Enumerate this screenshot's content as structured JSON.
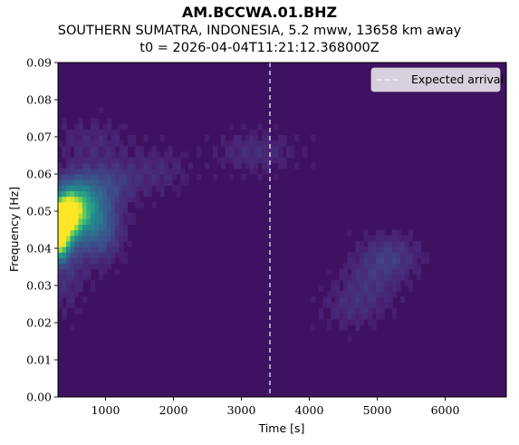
{
  "header": {
    "station": "AM.BCCWA.01.BHZ",
    "event": "SOUTHERN SUMATRA, INDONESIA, 5.2 mww, 13658 km away",
    "t0": "t0 = 2026-04-04T11:21:12.368000Z"
  },
  "chart_data": {
    "type": "heatmap",
    "title": "AM.BCCWA.01.BHZ",
    "xlabel": "Time [s]",
    "ylabel": "Frequency [Hz]",
    "xlim": [
      300,
      6900
    ],
    "ylim": [
      0.0,
      0.09
    ],
    "x_ticks": [
      1000,
      2000,
      3000,
      4000,
      5000,
      6000
    ],
    "x_tick_labels": [
      "1000",
      "2000",
      "3000",
      "4000",
      "5000",
      "6000"
    ],
    "y_ticks": [
      0.0,
      0.01,
      0.02,
      0.03,
      0.04,
      0.05,
      0.06,
      0.07,
      0.08,
      0.09
    ],
    "y_tick_labels": [
      "0.00",
      "0.01",
      "0.02",
      "0.03",
      "0.04",
      "0.05",
      "0.06",
      "0.07",
      "0.08",
      "0.09"
    ],
    "colormap": "viridis",
    "background_color": "#3f1261",
    "expected_arrival_s": 3420,
    "legend": {
      "label": "Expected arrival",
      "placement": "top-right"
    },
    "hotspots": [
      {
        "x": 380,
        "y": 0.048,
        "sx": 160,
        "sy": 0.0045,
        "intensity": 1.0
      },
      {
        "x": 600,
        "y": 0.052,
        "sx": 220,
        "sy": 0.005,
        "intensity": 0.55
      },
      {
        "x": 330,
        "y": 0.041,
        "sx": 90,
        "sy": 0.003,
        "intensity": 0.6
      },
      {
        "x": 900,
        "y": 0.046,
        "sx": 220,
        "sy": 0.006,
        "intensity": 0.3
      },
      {
        "x": 1100,
        "y": 0.058,
        "sx": 300,
        "sy": 0.004,
        "intensity": 0.15
      },
      {
        "x": 400,
        "y": 0.035,
        "sx": 200,
        "sy": 0.008,
        "intensity": 0.12
      },
      {
        "x": 3200,
        "y": 0.066,
        "sx": 400,
        "sy": 0.004,
        "intensity": 0.1
      },
      {
        "x": 5200,
        "y": 0.038,
        "sx": 300,
        "sy": 0.004,
        "intensity": 0.14
      },
      {
        "x": 4900,
        "y": 0.031,
        "sx": 300,
        "sy": 0.005,
        "intensity": 0.1
      },
      {
        "x": 4600,
        "y": 0.024,
        "sx": 300,
        "sy": 0.004,
        "intensity": 0.08
      },
      {
        "x": 1800,
        "y": 0.061,
        "sx": 300,
        "sy": 0.004,
        "intensity": 0.08
      },
      {
        "x": 800,
        "y": 0.069,
        "sx": 400,
        "sy": 0.004,
        "intensity": 0.08
      }
    ]
  }
}
